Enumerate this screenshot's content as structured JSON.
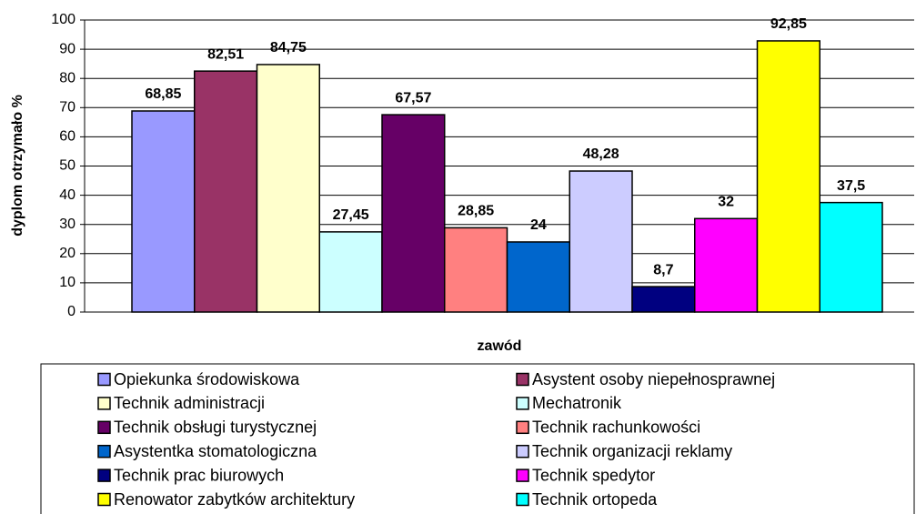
{
  "chart_data": {
    "type": "bar",
    "xlabel": "zawód",
    "ylabel": "dyplom otrzymało %",
    "ylim": [
      0,
      100
    ],
    "yticks": [
      0,
      10,
      20,
      30,
      40,
      50,
      60,
      70,
      80,
      90,
      100
    ],
    "grid": true,
    "series": [
      {
        "name": "Opiekunka środowiskowa",
        "color": "#9999ff",
        "values": [
          68.85
        ],
        "value_labels": [
          "68,85"
        ]
      },
      {
        "name": "Asystent osoby niepełnosprawnej",
        "color": "#993366",
        "values": [
          82.51
        ],
        "value_labels": [
          "82,51"
        ]
      },
      {
        "name": "Technik administracji",
        "color": "#ffffcc",
        "values": [
          84.75
        ],
        "value_labels": [
          "84,75"
        ]
      },
      {
        "name": "Mechatronik",
        "color": "#ccffff",
        "values": [
          27.45
        ],
        "value_labels": [
          "27,45"
        ]
      },
      {
        "name": "Technik obsługi turystycznej",
        "color": "#660066",
        "values": [
          67.57
        ],
        "value_labels": [
          "67,57"
        ]
      },
      {
        "name": "Technik rachunkowości",
        "color": "#ff8080",
        "values": [
          28.85
        ],
        "value_labels": [
          "28,85"
        ]
      },
      {
        "name": "Asystentka stomatologiczna",
        "color": "#0066cc",
        "values": [
          24
        ],
        "value_labels": [
          "24"
        ]
      },
      {
        "name": "Technik organizacji reklamy",
        "color": "#ccccff",
        "values": [
          48.28
        ],
        "value_labels": [
          "48,28"
        ]
      },
      {
        "name": "Technik prac biurowych",
        "color": "#000080",
        "values": [
          8.7
        ],
        "value_labels": [
          "8,7"
        ]
      },
      {
        "name": "Technik spedytor",
        "color": "#ff00ff",
        "values": [
          32
        ],
        "value_labels": [
          "32"
        ]
      },
      {
        "name": "Renowator zabytków architektury",
        "color": "#ffff00",
        "values": [
          92.85
        ],
        "value_labels": [
          "92,85"
        ]
      },
      {
        "name": "Technik ortopeda",
        "color": "#00ffff",
        "values": [
          37.5
        ],
        "value_labels": [
          "37,5"
        ]
      }
    ]
  }
}
